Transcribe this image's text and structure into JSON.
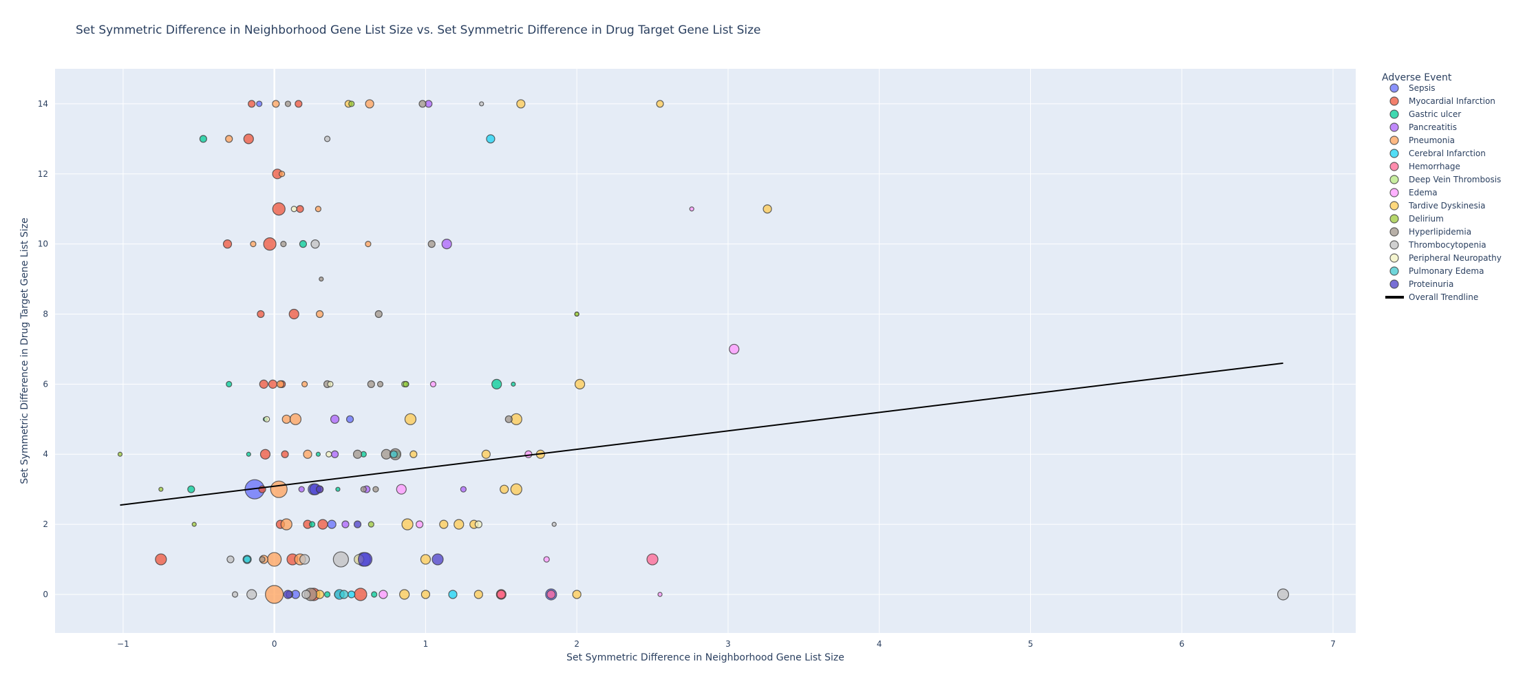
{
  "chart_data": {
    "type": "scatter",
    "title": "Set Symmetric Difference in Neighborhood Gene List Size vs. Set Symmetric Difference in Drug Target Gene List Size",
    "xlabel": "Set Symmetric Difference in Neighborhood Gene List Size",
    "ylabel": "Set Symmetric Difference in Drug Target Gene List Size",
    "xlim": [
      -1.45,
      7.15
    ],
    "ylim": [
      -1.1,
      15.0
    ],
    "xticks": [
      -1,
      0,
      1,
      2,
      3,
      4,
      5,
      6,
      7
    ],
    "xtick_labels": [
      "−1",
      "0",
      "1",
      "2",
      "3",
      "4",
      "5",
      "6",
      "7"
    ],
    "yticks": [
      0,
      2,
      4,
      6,
      8,
      10,
      12,
      14
    ],
    "ytick_labels": [
      "0",
      "2",
      "4",
      "6",
      "8",
      "10",
      "12",
      "14"
    ],
    "grid": true,
    "legend_title": "Adverse Event",
    "legend_position": "top-right",
    "trendline": {
      "name": "Overall Trendline",
      "color": "#000000",
      "x": [
        -1.02,
        6.67
      ],
      "y": [
        2.55,
        6.6
      ]
    },
    "series": [
      {
        "name": "Sepsis",
        "color": "#636efa",
        "points": [
          [
            -0.13,
            3,
            14
          ],
          [
            0.26,
            3,
            8
          ],
          [
            0.59,
            1,
            10
          ],
          [
            1.83,
            0,
            8
          ],
          [
            -0.1,
            14,
            4
          ],
          [
            0.38,
            2,
            6
          ],
          [
            0.14,
            0,
            6
          ],
          [
            0.5,
            5,
            5
          ]
        ]
      },
      {
        "name": "Myocardial Infarction",
        "color": "#ef553b",
        "points": [
          [
            -0.15,
            14,
            5
          ],
          [
            0.16,
            14,
            5
          ],
          [
            -0.17,
            13,
            7
          ],
          [
            0.02,
            12,
            7
          ],
          [
            0.03,
            11,
            9
          ],
          [
            0.17,
            11,
            5
          ],
          [
            -0.31,
            10,
            6
          ],
          [
            -0.03,
            10,
            9
          ],
          [
            -0.09,
            8,
            5
          ],
          [
            0.13,
            8,
            7
          ],
          [
            -0.07,
            6,
            6
          ],
          [
            -0.01,
            6,
            6
          ],
          [
            0.05,
            6,
            5
          ],
          [
            -0.06,
            4,
            7
          ],
          [
            0.07,
            4,
            5
          ],
          [
            -0.08,
            3,
            5
          ],
          [
            0.04,
            2,
            6
          ],
          [
            0.22,
            2,
            6
          ],
          [
            0.32,
            2,
            7
          ],
          [
            -0.75,
            1,
            8
          ],
          [
            0.12,
            1,
            8
          ],
          [
            0.26,
            0,
            9
          ],
          [
            0.57,
            0,
            9
          ],
          [
            1.5,
            0,
            7
          ],
          [
            0.42,
            0,
            5
          ]
        ]
      },
      {
        "name": "Gastric ulcer",
        "color": "#00cc96",
        "points": [
          [
            -0.47,
            13,
            5
          ],
          [
            0.19,
            10,
            5
          ],
          [
            -0.3,
            6,
            4
          ],
          [
            1.47,
            6,
            7
          ],
          [
            1.58,
            6,
            3
          ],
          [
            0.87,
            6,
            4
          ],
          [
            -0.06,
            5,
            3
          ],
          [
            0.29,
            4,
            3
          ],
          [
            0.59,
            4,
            4
          ],
          [
            -0.55,
            3,
            5
          ],
          [
            0.42,
            3,
            3
          ],
          [
            0.25,
            2,
            4
          ],
          [
            0.35,
            0,
            4
          ],
          [
            0.66,
            0,
            4
          ],
          [
            -0.17,
            4,
            3
          ],
          [
            0.81,
            4,
            5
          ]
        ]
      },
      {
        "name": "Pancreatitis",
        "color": "#ab63fa",
        "points": [
          [
            1.02,
            14,
            5
          ],
          [
            1.14,
            10,
            7
          ],
          [
            0.4,
            5,
            6
          ],
          [
            0.4,
            4,
            5
          ],
          [
            0.61,
            3,
            5
          ],
          [
            1.25,
            3,
            4
          ],
          [
            0.47,
            2,
            5
          ],
          [
            0.18,
            3,
            4
          ]
        ]
      },
      {
        "name": "Pneumonia",
        "color": "#ffa15a",
        "points": [
          [
            0.01,
            14,
            5
          ],
          [
            0.63,
            14,
            6
          ],
          [
            -0.3,
            13,
            5
          ],
          [
            0.05,
            12,
            4
          ],
          [
            0.29,
            11,
            4
          ],
          [
            -0.14,
            10,
            4
          ],
          [
            0.62,
            10,
            4
          ],
          [
            0.3,
            8,
            5
          ],
          [
            0.04,
            6,
            5
          ],
          [
            0.2,
            6,
            4
          ],
          [
            0.08,
            5,
            6
          ],
          [
            0.14,
            5,
            8
          ],
          [
            0.22,
            4,
            6
          ],
          [
            0.03,
            3,
            12
          ],
          [
            0.08,
            2,
            8
          ],
          [
            0.0,
            1,
            10
          ],
          [
            0.17,
            1,
            8
          ],
          [
            0.0,
            0,
            13
          ],
          [
            -0.07,
            1,
            6
          ],
          [
            0.3,
            3,
            5
          ]
        ]
      },
      {
        "name": "Cerebral Infarction",
        "color": "#19d3f3",
        "points": [
          [
            1.43,
            13,
            6
          ],
          [
            -0.18,
            1,
            6
          ],
          [
            0.43,
            0,
            7
          ],
          [
            1.18,
            0,
            6
          ],
          [
            0.51,
            0,
            5
          ]
        ]
      },
      {
        "name": "Hemorrhage",
        "color": "#ff6692",
        "points": [
          [
            2.5,
            1,
            8
          ],
          [
            1.5,
            0,
            6
          ],
          [
            1.83,
            0,
            6
          ]
        ]
      },
      {
        "name": "Deep Vein Thrombosis",
        "color": "#b6e880",
        "points": [
          [
            0.86,
            6,
            4
          ],
          [
            2.0,
            8,
            3
          ]
        ]
      },
      {
        "name": "Edema",
        "color": "#ff97ff",
        "points": [
          [
            2.76,
            11,
            3
          ],
          [
            3.04,
            7,
            7
          ],
          [
            1.05,
            6,
            4
          ],
          [
            1.68,
            4,
            5
          ],
          [
            0.84,
            3,
            7
          ],
          [
            0.96,
            2,
            5
          ],
          [
            0.72,
            0,
            6
          ],
          [
            1.8,
            1,
            4
          ],
          [
            2.55,
            0,
            3
          ]
        ]
      },
      {
        "name": "Tardive Dyskinesia",
        "color": "#fecb52",
        "points": [
          [
            0.49,
            14,
            5
          ],
          [
            1.63,
            14,
            6
          ],
          [
            2.55,
            14,
            5
          ],
          [
            3.26,
            11,
            6
          ],
          [
            2.02,
            6,
            7
          ],
          [
            0.9,
            5,
            8
          ],
          [
            1.6,
            5,
            8
          ],
          [
            0.92,
            4,
            5
          ],
          [
            1.4,
            4,
            6
          ],
          [
            1.76,
            4,
            6
          ],
          [
            1.52,
            3,
            6
          ],
          [
            1.6,
            3,
            8
          ],
          [
            0.88,
            2,
            8
          ],
          [
            1.12,
            2,
            6
          ],
          [
            1.22,
            2,
            7
          ],
          [
            1.32,
            2,
            6
          ],
          [
            1.0,
            1,
            7
          ],
          [
            0.86,
            0,
            7
          ],
          [
            1.0,
            0,
            6
          ],
          [
            1.35,
            0,
            6
          ],
          [
            2.0,
            0,
            6
          ],
          [
            0.56,
            1,
            5
          ],
          [
            0.3,
            0,
            6
          ]
        ]
      },
      {
        "name": "Delirium",
        "color": "#9ec93a",
        "points": [
          [
            -1.02,
            4,
            3
          ],
          [
            -0.75,
            3,
            3
          ],
          [
            -0.53,
            2,
            3
          ],
          [
            0.64,
            2,
            4
          ],
          [
            2.0,
            8,
            3
          ],
          [
            0.87,
            6,
            4
          ],
          [
            0.51,
            14,
            4
          ]
        ]
      },
      {
        "name": "Hyperlipidemia",
        "color": "#a0958a",
        "points": [
          [
            0.09,
            14,
            4
          ],
          [
            0.98,
            14,
            5
          ],
          [
            0.06,
            10,
            4
          ],
          [
            1.04,
            10,
            5
          ],
          [
            0.69,
            8,
            5
          ],
          [
            0.31,
            9,
            3
          ],
          [
            0.35,
            6,
            5
          ],
          [
            0.64,
            6,
            5
          ],
          [
            0.7,
            6,
            4
          ],
          [
            0.55,
            4,
            6
          ],
          [
            0.74,
            4,
            7
          ],
          [
            0.8,
            4,
            8
          ],
          [
            1.55,
            5,
            5
          ],
          [
            0.59,
            3,
            4
          ],
          [
            -0.08,
            1,
            4
          ],
          [
            0.1,
            0,
            5
          ],
          [
            0.24,
            0,
            9
          ],
          [
            0.67,
            3,
            4
          ]
        ]
      },
      {
        "name": "Thrombocytopenia",
        "color": "#c0c0c0",
        "points": [
          [
            1.37,
            14,
            3
          ],
          [
            0.35,
            13,
            4
          ],
          [
            0.27,
            10,
            6
          ],
          [
            -0.15,
            0,
            7
          ],
          [
            0.2,
            1,
            7
          ],
          [
            0.44,
            1,
            11
          ],
          [
            -0.29,
            1,
            5
          ],
          [
            6.67,
            0,
            8
          ],
          [
            1.85,
            2,
            3
          ],
          [
            0.21,
            0,
            6
          ],
          [
            -0.26,
            0,
            4
          ]
        ]
      },
      {
        "name": "Peripheral Neuropathy",
        "color": "#f1f1c0",
        "points": [
          [
            0.13,
            11,
            4
          ],
          [
            -0.05,
            5,
            4
          ],
          [
            0.56,
            1,
            7
          ],
          [
            1.35,
            2,
            5
          ],
          [
            0.36,
            4,
            4
          ],
          [
            0.37,
            6,
            4
          ]
        ]
      },
      {
        "name": "Pulmonary Edema",
        "color": "#40c8cd",
        "points": [
          [
            -0.18,
            1,
            5
          ],
          [
            0.46,
            0,
            6
          ],
          [
            0.79,
            4,
            5
          ]
        ]
      },
      {
        "name": "Proteinuria",
        "color": "#4b3fc7",
        "points": [
          [
            0.27,
            3,
            8
          ],
          [
            0.09,
            0,
            6
          ],
          [
            0.55,
            2,
            5
          ],
          [
            0.6,
            1,
            10
          ],
          [
            1.08,
            1,
            8
          ],
          [
            0.3,
            3,
            5
          ]
        ]
      }
    ]
  }
}
